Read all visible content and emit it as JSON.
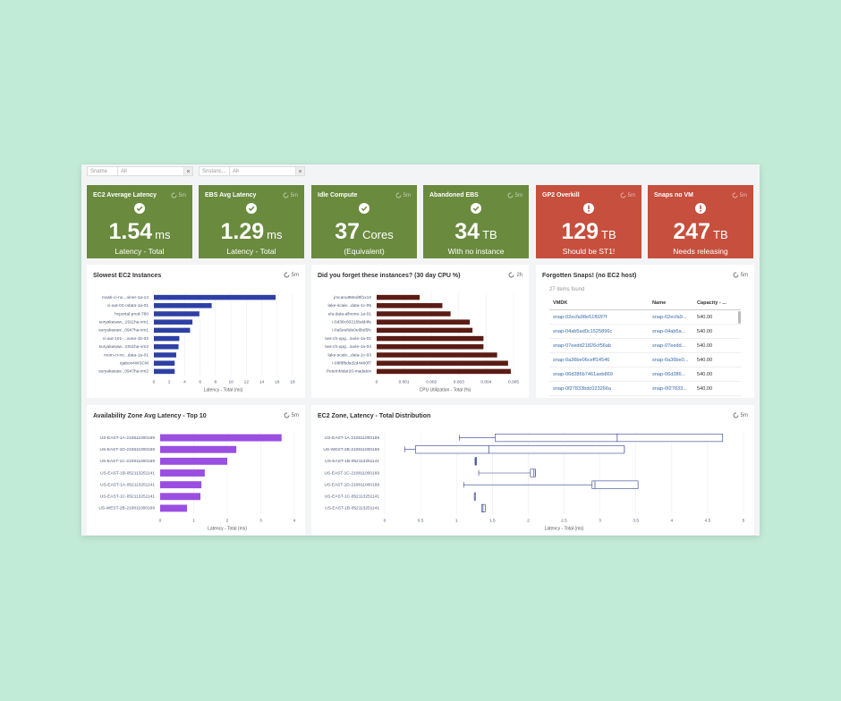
{
  "filters": [
    {
      "label": "Sname",
      "value": "All"
    },
    {
      "label": "Snstanc...",
      "value": "All"
    }
  ],
  "kpis": [
    {
      "title": "EC2 Average Latency",
      "refresh": "5m",
      "value": 1.54,
      "unit": "ms",
      "caption": "Latency - Total",
      "color": "#6a8a3e",
      "icon": "check"
    },
    {
      "title": "EBS Avg Latency",
      "refresh": "5m",
      "value": 1.29,
      "unit": "ms",
      "caption": "Latency - Total",
      "color": "#6a8a3e",
      "icon": "check"
    },
    {
      "title": "Idle Compute",
      "refresh": "5m",
      "value": 37,
      "unit": "Cores",
      "caption": "(Equivalent)",
      "color": "#6a8a3e",
      "icon": "check"
    },
    {
      "title": "Abandoned EBS",
      "refresh": "5m",
      "value": 34,
      "unit": "TB",
      "caption": "With no instance",
      "color": "#6a8a3e",
      "icon": "check"
    },
    {
      "title": "GP2 Overkill",
      "refresh": "5m",
      "value": 129,
      "unit": "TB",
      "caption": "Should be ST1!",
      "color": "#c64f3d",
      "icon": "alert"
    },
    {
      "title": "Snaps no VM",
      "refresh": "5m",
      "value": 247,
      "unit": "TB",
      "caption": "Needs releasing",
      "color": "#c64f3d",
      "icon": "alert"
    }
  ],
  "chart_data": [
    {
      "type": "bar",
      "title": "Slowest EC2 Instances",
      "refresh": "5m",
      "color": "#2e3fa6",
      "grid": true,
      "categories": [
        "mask-ci-no...oiner-1a-14",
        "ci-aut-02-odata-1a-01",
        "hcportal-prod-780",
        "suryakasaw...1911ha-vm1",
        "suryakasaw...0947ha-vm1",
        "ci-aut-101-...ouse-1b-02",
        "suryakasaw...1911ha-vm2",
        "mom-ci-no...data-1a-01",
        "igabox4WSCM",
        "suryakasaw...0947ha-vm2"
      ],
      "values": [
        15.8,
        7.5,
        5.9,
        5.0,
        4.7,
        3.3,
        3.2,
        2.9,
        2.7,
        2.7
      ],
      "xlim": [
        0,
        18
      ],
      "xticks": [
        0,
        2,
        4,
        6,
        8,
        10,
        12,
        14,
        16,
        18
      ],
      "xlabel": "Latency - Total (ms)"
    },
    {
      "type": "bar",
      "title": "Did you forget these instances? (30 day CPU %)",
      "refresh": "2h",
      "color": "#5a1c14",
      "grid": true,
      "categories": [
        "jmcanu9Med8f1x10",
        "lake-scale...data-1c-05",
        "ela-data-allnone-1a-01",
        "i-0d36c60215bdd4fe",
        "i-0a5ee8de0e6bd5fc",
        "tws-ch-upg...ouse-1a-01",
        "tws-ch-upg...ouse-1a-04",
        "lake-scale...data-1c-03",
        "i-08f8fbdsd2d4460f7",
        "PeteInMdar20-madatov"
      ],
      "values": [
        0.00157,
        0.0024,
        0.0027,
        0.0034,
        0.0035,
        0.0039,
        0.0039,
        0.0044,
        0.0048,
        0.0049
      ],
      "xlim": [
        0,
        0.005
      ],
      "xticks": [
        0,
        0.001,
        0.002,
        0.003,
        0.004,
        0.005
      ],
      "xlabel": "CPU Utilization - Total (%)"
    },
    {
      "type": "bar",
      "title": "Availability Zone Avg Latency - Top 10",
      "refresh": "5m",
      "color": "#9a4fe0",
      "grid": true,
      "categories": [
        "US-EAST-1A-210811000169",
        "US-EAST-1D-210811000169",
        "US-EAST-1C-210811000169",
        "US-EAST-1B-052113251141",
        "US-EAST-1A-052113251141",
        "US-EAST-1C-052113251141",
        "US-WEST-2B-210811000169"
      ],
      "values": [
        3.62,
        2.27,
        2.0,
        1.33,
        1.23,
        1.2,
        0.8
      ],
      "xlim": [
        0,
        4
      ],
      "xticks": [
        0,
        1,
        2,
        3,
        4
      ],
      "xlabel": "Latency - Total (ms)"
    },
    {
      "type": "box",
      "title": "EC2 Zone, Latency - Total Distribution",
      "refresh": "5m",
      "color": "#2f3f8f",
      "grid": true,
      "categories": [
        "US-EAST-1A-210811000169",
        "US-WEST-2B-210811000169",
        "US-EAST-1B-052113251141",
        "US-EAST-1C-210811000169",
        "US-EAST-1D-210811000169",
        "US-EAST-1C-052113251141",
        "US-EAST-1B-052113251141"
      ],
      "min": [
        1.04,
        0.28,
        1.26,
        1.31,
        1.1,
        1.25,
        1.35
      ],
      "q1": [
        1.54,
        0.43,
        1.26,
        2.03,
        2.89,
        1.25,
        1.35
      ],
      "median": [
        3.24,
        1.45,
        1.27,
        2.08,
        2.93,
        1.25,
        1.37
      ],
      "q3": [
        4.71,
        3.34,
        1.28,
        2.1,
        3.53,
        1.26,
        1.4
      ],
      "max": [
        4.71,
        3.34,
        1.28,
        2.1,
        3.53,
        1.26,
        1.4
      ],
      "xlim": [
        0,
        5
      ],
      "xticks": [
        0,
        0.5,
        1,
        1.5,
        2,
        2.5,
        3,
        3.5,
        4,
        4.5,
        5
      ],
      "xlabel": "Latency - Total (ms)"
    }
  ],
  "table": {
    "title": "Forgotten Snaps! (no EC2 host)",
    "refresh": "5m",
    "count": "27 items found",
    "columns": [
      "VMDK",
      "Name",
      "Capacity - ..."
    ],
    "rows": [
      [
        "snap-02ecfa98e51f02f7f",
        "snap-02ecfa9...",
        "540.00"
      ],
      [
        "snap-04ab5ad0c1525896c",
        "snap-04ab5a...",
        "540.00"
      ],
      [
        "snap-07eedd21826cf56ab",
        "snap-07eedd...",
        "540.00"
      ],
      [
        "snap-0a36be06ceff14546",
        "snap-0a36be0...",
        "540.00"
      ],
      [
        "snap-06d286b7461aeb869",
        "snap-06d286...",
        "540.00"
      ],
      [
        "snap-0f27833bdc023266a",
        "snap-0f27833...",
        "540.00"
      ]
    ]
  }
}
